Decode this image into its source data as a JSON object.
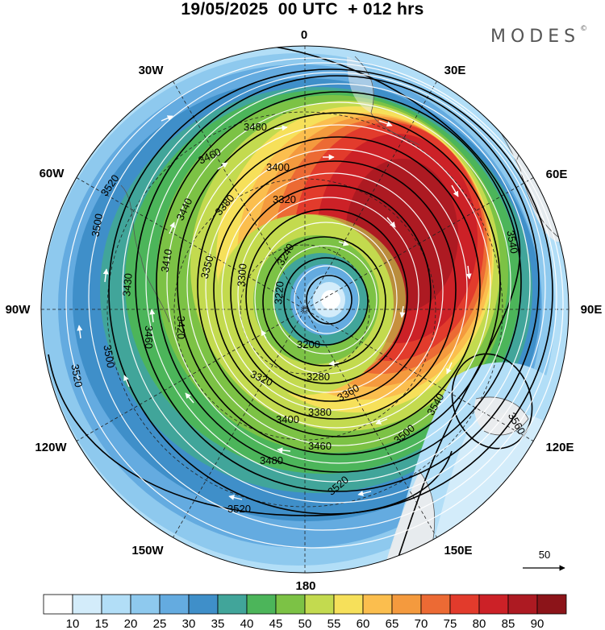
{
  "title": "19/05/2025  00 UTC  + 012 hrs",
  "brand": "MODES",
  "brand_mark": "©",
  "map": {
    "projection": "polar stereographic (north pole)",
    "lon_labels": [
      {
        "text": "0",
        "id": "lon-0"
      },
      {
        "text": "30E",
        "id": "lon-30e"
      },
      {
        "text": "60E",
        "id": "lon-60e"
      },
      {
        "text": "90E",
        "id": "lon-90e"
      },
      {
        "text": "120E",
        "id": "lon-120e"
      },
      {
        "text": "150E",
        "id": "lon-150e"
      },
      {
        "text": "180",
        "id": "lon-180"
      },
      {
        "text": "150W",
        "id": "lon-150w"
      },
      {
        "text": "120W",
        "id": "lon-120w"
      },
      {
        "text": "90W",
        "id": "lon-90w"
      },
      {
        "text": "60W",
        "id": "lon-60w"
      },
      {
        "text": "30W",
        "id": "lon-30w"
      }
    ],
    "contour_labels": [
      "3480",
      "3460",
      "3400",
      "3520",
      "3320",
      "3380",
      "3440",
      "3500",
      "3240",
      "3410",
      "3430",
      "3350",
      "3300",
      "3220",
      "3420",
      "3460",
      "3200",
      "3280",
      "3320",
      "3400",
      "3380",
      "3360",
      "3540",
      "3560",
      "3500",
      "3460",
      "3480",
      "3520",
      "3520",
      "3540",
      "3520",
      "3500"
    ],
    "vector_reference": "50"
  },
  "colorbar": {
    "colors": [
      "#ffffff",
      "#d3ecfa",
      "#b2def7",
      "#8ec9ee",
      "#64abe0",
      "#3f8fc9",
      "#41a59a",
      "#4cb55a",
      "#7cc245",
      "#c3da4f",
      "#f6e05a",
      "#fbbe4e",
      "#f49a3e",
      "#ec6a34",
      "#e23b2c",
      "#cc2127",
      "#ad1a22",
      "#8c1419"
    ],
    "tick_labels": [
      "10",
      "15",
      "20",
      "25",
      "30",
      "35",
      "40",
      "45",
      "50",
      "55",
      "60",
      "65",
      "70",
      "75",
      "80",
      "85",
      "90"
    ]
  }
}
